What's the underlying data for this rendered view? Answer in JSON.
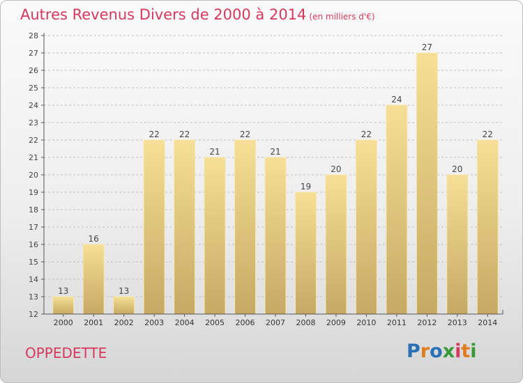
{
  "header": {
    "title": "Autres Revenus Divers de 2000 à 2014",
    "subtitle": "(en milliers d'€)"
  },
  "footer": {
    "commune": "OPPEDETTE",
    "logo_text": "Proxiti",
    "logo_colors": [
      "#2b6fb5",
      "#e07b1e",
      "#2b6fb5",
      "#3a9a3a",
      "#d6395f",
      "#e07b1e",
      "#3a9a3a"
    ]
  },
  "colors": {
    "title": "#d6395f",
    "bar_light": "#f6df96",
    "bar_dark": "#c5a964",
    "bar_edge": "#f8e8b0",
    "axis": "#555555",
    "grid": "#bfbfbf"
  },
  "chart_data": {
    "type": "bar",
    "categories": [
      "2000",
      "2001",
      "2002",
      "2003",
      "2004",
      "2005",
      "2006",
      "2007",
      "2008",
      "2009",
      "2010",
      "2011",
      "2012",
      "2013",
      "2014"
    ],
    "values": [
      13,
      16,
      13,
      22,
      22,
      21,
      22,
      21,
      19,
      20,
      22,
      24,
      27,
      20,
      22
    ],
    "ylim": [
      12,
      28
    ],
    "yticks": [
      12,
      13,
      14,
      15,
      16,
      17,
      18,
      19,
      20,
      21,
      22,
      23,
      24,
      25,
      26,
      27,
      28
    ],
    "grid": "horizontal-dashed",
    "legend": "none",
    "data_labels": true
  }
}
